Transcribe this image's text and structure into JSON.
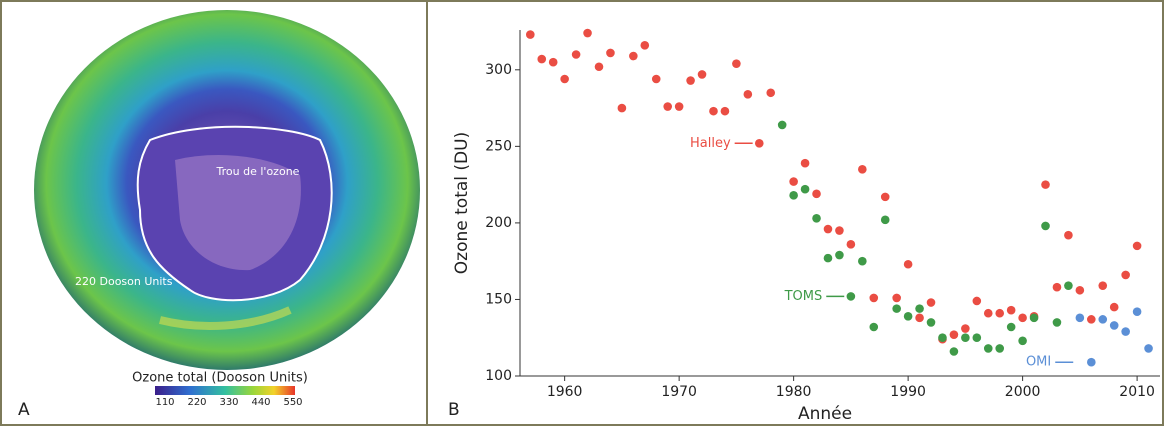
{
  "panel_a": {
    "label": "A",
    "hole_label": "Trou de l'ozone",
    "contour_label": "220 Dooson Units",
    "colorbar": {
      "title": "Ozone total (Dooson Units)",
      "ticks": [
        110,
        220,
        330,
        440,
        550
      ]
    }
  },
  "chart_data": {
    "type": "scatter",
    "panel_label": "B",
    "x_label": "Année",
    "y_label": "Ozone total (DU)",
    "xlim": [
      1956.1,
      2012
    ],
    "ylim": [
      100,
      326
    ],
    "xticks": [
      1960,
      1970,
      1980,
      1990,
      2000,
      2010
    ],
    "yticks": [
      100,
      150,
      200,
      250,
      300
    ],
    "series": [
      {
        "name": "Halley",
        "color": "#ea4d43",
        "x": [
          1957,
          1958,
          1959,
          1960,
          1961,
          1962,
          1963,
          1964,
          1965,
          1966,
          1967,
          1968,
          1969,
          1970,
          1971,
          1972,
          1973,
          1974,
          1975,
          1976,
          1977,
          1978,
          1980,
          1981,
          1982,
          1983,
          1984,
          1985,
          1986,
          1987,
          1988,
          1989,
          1990,
          1991,
          1992,
          1993,
          1994,
          1995,
          1996,
          1997,
          1998,
          1999,
          2000,
          2001,
          2002,
          2003,
          2004,
          2005,
          2006,
          2007,
          2008,
          2009,
          2010
        ],
        "values": [
          323,
          307,
          305,
          294,
          310,
          324,
          302,
          311,
          275,
          309,
          316,
          294,
          276,
          276,
          293,
          297,
          273,
          273,
          304,
          284,
          252,
          285,
          227,
          239,
          219,
          196,
          195,
          186,
          235,
          151,
          217,
          151,
          173,
          138,
          148,
          124,
          127,
          131,
          149,
          141,
          141,
          143,
          138,
          139,
          225,
          158,
          192,
          156,
          137,
          159,
          145,
          166,
          185
        ]
      },
      {
        "name": "TOMS",
        "color": "#3f9a48",
        "x": [
          1979,
          1980,
          1981,
          1982,
          1983,
          1984,
          1985,
          1986,
          1987,
          1988,
          1989,
          1990,
          1991,
          1992,
          1993,
          1994,
          1995,
          1996,
          1997,
          1998,
          1999,
          2000,
          2001,
          2002,
          2003,
          2004
        ],
        "values": [
          264,
          218,
          222,
          203,
          177,
          179,
          152,
          175,
          132,
          202,
          144,
          139,
          144,
          135,
          125,
          116,
          125,
          125,
          118,
          118,
          132,
          123,
          138,
          198,
          135,
          159
        ]
      },
      {
        "name": "OMI",
        "color": "#5b8fd6",
        "x": [
          2005,
          2006,
          2007,
          2008,
          2009,
          2010,
          2011
        ],
        "values": [
          138,
          109,
          137,
          133,
          129,
          142,
          118
        ]
      }
    ]
  }
}
